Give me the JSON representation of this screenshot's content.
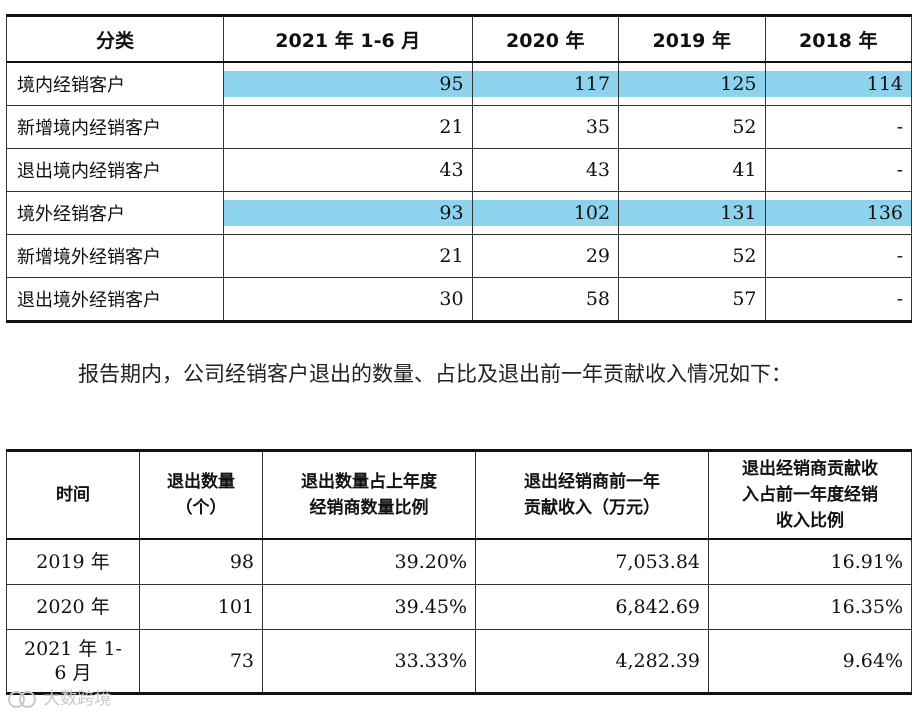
{
  "table1": {
    "headers": [
      "分类",
      "2021 年 1-6 月",
      "2020 年",
      "2019 年",
      "2018 年"
    ],
    "rows": [
      {
        "label": "境内经销客户",
        "values": [
          "95",
          "117",
          "125",
          "114"
        ]
      },
      {
        "label": "新增境内经销客户",
        "values": [
          "21",
          "35",
          "52",
          "-"
        ]
      },
      {
        "label": "退出境内经销客户",
        "values": [
          "43",
          "43",
          "41",
          "-"
        ]
      },
      {
        "label": "境外经销客户",
        "values": [
          "93",
          "102",
          "131",
          "136"
        ]
      },
      {
        "label": "新增境外经销客户",
        "values": [
          "21",
          "29",
          "52",
          "-"
        ]
      },
      {
        "label": "退出境外经销客户",
        "values": [
          "30",
          "58",
          "57",
          "-"
        ]
      }
    ]
  },
  "paragraph": "报告期内，公司经销客户退出的数量、占比及退出前一年贡献收入情况如下：",
  "table2": {
    "headers": [
      [
        "时间"
      ],
      [
        "退出数量",
        "（个）"
      ],
      [
        "退出数量占上年度",
        "经销商数量比例"
      ],
      [
        "退出经销商前一年",
        "贡献收入（万元）"
      ],
      [
        "退出经销商贡献收",
        "入占前一年度经销",
        "收入比例"
      ]
    ],
    "rows": [
      {
        "period": [
          "2019 年"
        ],
        "count": "98",
        "ratio": "39.20%",
        "revenue": "7,053.84",
        "rev_ratio": "16.91%"
      },
      {
        "period": [
          "2020 年"
        ],
        "count": "101",
        "ratio": "39.45%",
        "revenue": "6,842.69",
        "rev_ratio": "16.35%"
      },
      {
        "period": [
          "2021 年 1-",
          "6 月"
        ],
        "count": "73",
        "ratio": "33.33%",
        "revenue": "4,282.39",
        "rev_ratio": "9.64%"
      }
    ]
  },
  "watermark": "大数跨境",
  "colors": {
    "highlight": "#8ed3ee",
    "text": "#111111",
    "watermark": "#c8c8c8"
  }
}
